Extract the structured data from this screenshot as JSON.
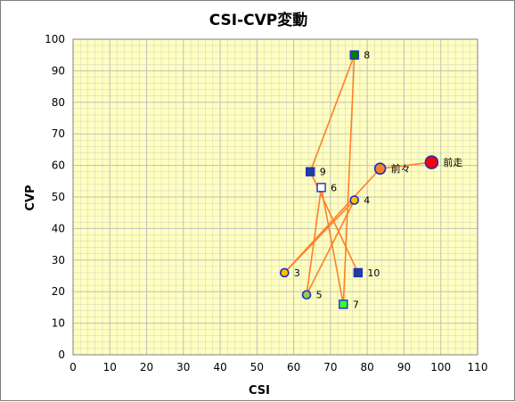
{
  "chart_data": {
    "type": "scatter",
    "title": "CSI-CVP変動",
    "xlabel": "CSI",
    "ylabel": "CVP",
    "xlim": [
      0,
      110
    ],
    "ylim": [
      0,
      100
    ],
    "xticks": [
      0,
      10,
      20,
      30,
      40,
      50,
      60,
      70,
      80,
      90,
      100,
      110
    ],
    "yticks": [
      0,
      10,
      20,
      30,
      40,
      50,
      60,
      70,
      80,
      90,
      100
    ],
    "grid": true,
    "plot_background": "#ffffc0",
    "grid_color": "#bfbfbf",
    "line_color": "#ff7f27",
    "points": [
      {
        "label": "前走",
        "x": 97.5,
        "y": 61,
        "shape": "circle",
        "fill": "#ff0000",
        "stroke": "#1f2fbf",
        "size": "large"
      },
      {
        "label": "前々",
        "x": 83.5,
        "y": 59,
        "shape": "circle",
        "fill": "#f4822a",
        "stroke": "#1f2fbf",
        "size": "medium"
      },
      {
        "label": "3",
        "x": 57.5,
        "y": 26,
        "shape": "circle",
        "fill": "#ffc000",
        "stroke": "#1f2fbf",
        "size": "small"
      },
      {
        "label": "4",
        "x": 76.5,
        "y": 49,
        "shape": "circle",
        "fill": "#ffc000",
        "stroke": "#1f2fbf",
        "size": "small"
      },
      {
        "label": "5",
        "x": 63.5,
        "y": 19,
        "shape": "circle",
        "fill": "#92d050",
        "stroke": "#1f2fbf",
        "size": "small"
      },
      {
        "label": "6",
        "x": 67.5,
        "y": 53,
        "shape": "square",
        "fill": "#ffffff",
        "stroke": "#1f2fbf",
        "size": "small"
      },
      {
        "label": "7",
        "x": 73.5,
        "y": 16,
        "shape": "square",
        "fill": "#33ff33",
        "stroke": "#1f2fbf",
        "size": "small"
      },
      {
        "label": "8",
        "x": 76.5,
        "y": 95,
        "shape": "square",
        "fill": "#008000",
        "stroke": "#1f2fbf",
        "size": "small"
      },
      {
        "label": "9",
        "x": 64.5,
        "y": 58,
        "shape": "square",
        "fill": "#1f3f99",
        "stroke": "#1f2fbf",
        "size": "small"
      },
      {
        "label": "10",
        "x": 77.5,
        "y": 26,
        "shape": "square",
        "fill": "#1f3f99",
        "stroke": "#1f2fbf",
        "size": "small"
      }
    ]
  }
}
